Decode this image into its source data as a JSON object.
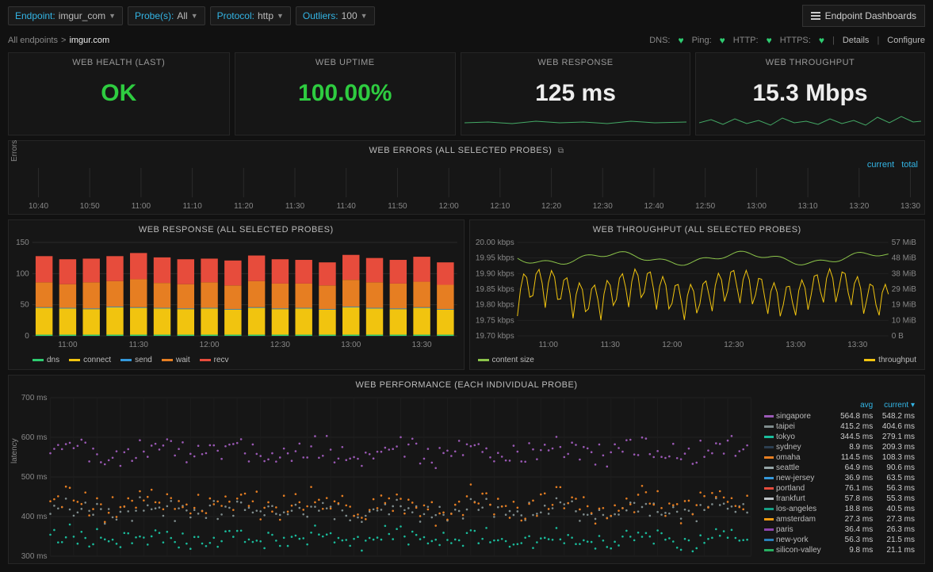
{
  "filters": {
    "endpoint_label": "Endpoint:",
    "endpoint_value": "imgur_com",
    "probes_label": "Probe(s):",
    "probes_value": "All",
    "protocol_label": "Protocol:",
    "protocol_value": "http",
    "outliers_label": "Outliers:",
    "outliers_value": "100"
  },
  "dash_button": "Endpoint Dashboards",
  "breadcrumb": {
    "root": "All endpoints",
    "sep": ">",
    "current": "imgur.com"
  },
  "status": {
    "dns_label": "DNS:",
    "ping_label": "Ping:",
    "http_label": "HTTP:",
    "https_label": "HTTPS:",
    "details": "Details",
    "configure": "Configure"
  },
  "cards": {
    "health_title": "WEB HEALTH (LAST)",
    "health_value": "OK",
    "uptime_title": "WEB UPTIME",
    "uptime_value": "100.00%",
    "response_title": "WEB RESPONSE",
    "response_value": "125 ms",
    "throughput_title": "WEB THROUGHPUT",
    "throughput_value": "15.3 Mbps"
  },
  "errors": {
    "title": "WEB ERRORS (ALL SELECTED PROBES)",
    "link_current": "current",
    "link_total": "total",
    "y_label": "Errors",
    "x_ticks": [
      "10:40",
      "10:50",
      "11:00",
      "11:10",
      "11:20",
      "11:30",
      "11:40",
      "11:50",
      "12:00",
      "12:10",
      "12:20",
      "12:30",
      "12:40",
      "12:50",
      "13:00",
      "13:10",
      "13:20",
      "13:30"
    ]
  },
  "response_chart": {
    "title": "WEB RESPONSE (ALL SELECTED PROBES)",
    "y_ticks": [
      "0",
      "50",
      "100",
      "150"
    ],
    "x_ticks": [
      "11:00",
      "11:30",
      "12:00",
      "12:30",
      "13:00",
      "13:30"
    ],
    "colors": {
      "dns": "#2ecc71",
      "connect": "#f1c40f",
      "send": "#3498db",
      "wait": "#e67e22",
      "recv": "#e74c3c"
    },
    "segments": [
      "dns",
      "connect",
      "send",
      "wait",
      "recv"
    ],
    "legend": {
      "dns": "dns",
      "connect": "connect",
      "send": "send",
      "wait": "wait",
      "recv": "recv"
    },
    "bars": [
      {
        "dns": 2,
        "connect": 43,
        "send": 1,
        "wait": 40,
        "recv": 42
      },
      {
        "dns": 2,
        "connect": 42,
        "send": 1,
        "wait": 38,
        "recv": 40
      },
      {
        "dns": 2,
        "connect": 41,
        "send": 1,
        "wait": 42,
        "recv": 38
      },
      {
        "dns": 2,
        "connect": 44,
        "send": 1,
        "wait": 41,
        "recv": 40
      },
      {
        "dns": 2,
        "connect": 43,
        "send": 1,
        "wait": 45,
        "recv": 42
      },
      {
        "dns": 2,
        "connect": 42,
        "send": 1,
        "wait": 40,
        "recv": 41
      },
      {
        "dns": 2,
        "connect": 41,
        "send": 1,
        "wait": 39,
        "recv": 40
      },
      {
        "dns": 2,
        "connect": 42,
        "send": 1,
        "wait": 41,
        "recv": 38
      },
      {
        "dns": 2,
        "connect": 40,
        "send": 1,
        "wait": 38,
        "recv": 40
      },
      {
        "dns": 2,
        "connect": 43,
        "send": 1,
        "wait": 42,
        "recv": 41
      },
      {
        "dns": 2,
        "connect": 41,
        "send": 1,
        "wait": 40,
        "recv": 39
      },
      {
        "dns": 2,
        "connect": 42,
        "send": 1,
        "wait": 39,
        "recv": 38
      },
      {
        "dns": 2,
        "connect": 40,
        "send": 1,
        "wait": 38,
        "recv": 37
      },
      {
        "dns": 2,
        "connect": 44,
        "send": 1,
        "wait": 43,
        "recv": 40
      },
      {
        "dns": 2,
        "connect": 42,
        "send": 1,
        "wait": 41,
        "recv": 39
      },
      {
        "dns": 2,
        "connect": 41,
        "send": 1,
        "wait": 40,
        "recv": 38
      },
      {
        "dns": 2,
        "connect": 43,
        "send": 1,
        "wait": 41,
        "recv": 40
      },
      {
        "dns": 2,
        "connect": 40,
        "send": 1,
        "wait": 39,
        "recv": 36
      }
    ]
  },
  "throughput_chart": {
    "title": "WEB THROUGHPUT (ALL SELECTED PROBES)",
    "y_left": [
      "20.00 kbps",
      "19.95 kbps",
      "19.90 kbps",
      "19.85 kbps",
      "19.80 kbps",
      "19.75 kbps",
      "19.70 kbps"
    ],
    "y_right": [
      "57 MiB",
      "48 MiB",
      "38 MiB",
      "29 MiB",
      "19 MiB",
      "10 MiB",
      "0 B"
    ],
    "x_ticks": [
      "11:00",
      "11:30",
      "12:00",
      "12:30",
      "13:00",
      "13:30"
    ],
    "colors": {
      "content": "#8bc34a",
      "throughput": "#f1c40f"
    },
    "legend": {
      "content": "content size",
      "throughput": "throughput"
    }
  },
  "performance": {
    "title": "WEB PERFORMANCE (EACH INDIVIDUAL PROBE)",
    "y_ticks": [
      "700 ms",
      "600 ms",
      "500 ms",
      "400 ms",
      "300 ms"
    ],
    "y_label": "latency",
    "header_avg": "avg",
    "header_current": "current",
    "probes": [
      {
        "name": "singapore",
        "color": "#9b59b6",
        "avg": "564.8 ms",
        "current": "548.2 ms"
      },
      {
        "name": "taipei",
        "color": "#7f8c8d",
        "avg": "415.2 ms",
        "current": "404.6 ms"
      },
      {
        "name": "tokyo",
        "color": "#1abc9c",
        "avg": "344.5 ms",
        "current": "279.1 ms"
      },
      {
        "name": "sydney",
        "color": "#2c3e50",
        "avg": "8.9 ms",
        "current": "209.3 ms"
      },
      {
        "name": "omaha",
        "color": "#e67e22",
        "avg": "114.5 ms",
        "current": "108.3 ms"
      },
      {
        "name": "seattle",
        "color": "#95a5a6",
        "avg": "64.9 ms",
        "current": "90.6 ms"
      },
      {
        "name": "new-jersey",
        "color": "#3498db",
        "avg": "36.9 ms",
        "current": "63.5 ms"
      },
      {
        "name": "portland",
        "color": "#e74c3c",
        "avg": "76.1 ms",
        "current": "56.3 ms"
      },
      {
        "name": "frankfurt",
        "color": "#bdc3c7",
        "avg": "57.8 ms",
        "current": "55.3 ms"
      },
      {
        "name": "los-angeles",
        "color": "#16a085",
        "avg": "18.8 ms",
        "current": "40.5 ms"
      },
      {
        "name": "amsterdam",
        "color": "#f39c12",
        "avg": "27.3 ms",
        "current": "27.3 ms"
      },
      {
        "name": "paris",
        "color": "#8e44ad",
        "avg": "36.4 ms",
        "current": "26.3 ms"
      },
      {
        "name": "new-york",
        "color": "#2980b9",
        "avg": "56.3 ms",
        "current": "21.5 ms"
      },
      {
        "name": "silicon-valley",
        "color": "#27ae60",
        "avg": "9.8 ms",
        "current": "21.1 ms"
      }
    ]
  }
}
